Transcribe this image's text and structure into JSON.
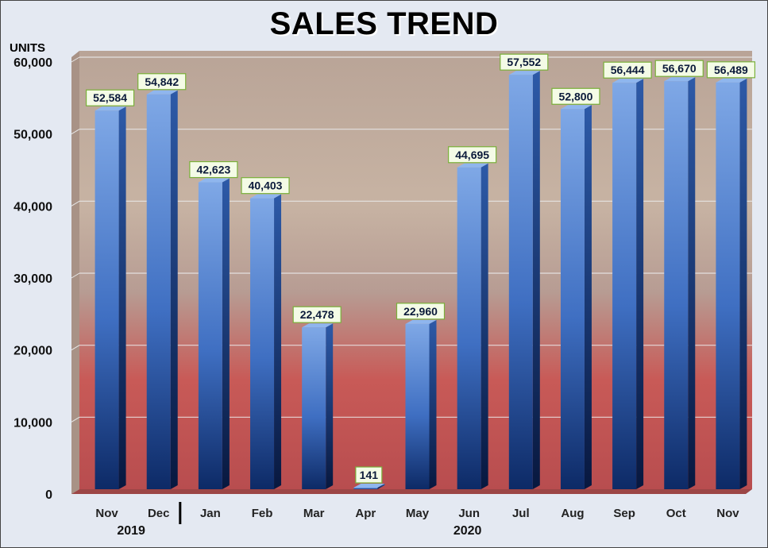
{
  "chart_data": {
    "type": "bar",
    "title": "SALES TREND",
    "ylabel": "UNITS",
    "ylim": [
      0,
      60000
    ],
    "yticks": [
      "0",
      "10,000",
      "20,000",
      "30,000",
      "40,000",
      "50,000",
      "60,000"
    ],
    "categories": [
      "Nov",
      "Dec",
      "Jan",
      "Feb",
      "Mar",
      "Apr",
      "May",
      "Jun",
      "Jul",
      "Aug",
      "Sep",
      "Oct",
      "Nov"
    ],
    "values": [
      52584,
      54842,
      42623,
      40403,
      22478,
      141,
      22960,
      44695,
      57552,
      52800,
      56444,
      56670,
      56489
    ],
    "data_labels": [
      "52,584",
      "54,842",
      "42,623",
      "40,403",
      "22,478",
      "141",
      "22,960",
      "44,695",
      "57,552",
      "52,800",
      "56,444",
      "56,670",
      "56,489"
    ],
    "year_groups": [
      {
        "label": "2019",
        "categories": [
          "Nov",
          "Dec"
        ]
      },
      {
        "label": "2020",
        "categories": [
          "Jan",
          "Feb",
          "Mar",
          "Apr",
          "May",
          "Jun",
          "Jul",
          "Aug",
          "Sep",
          "Oct",
          "Nov"
        ]
      }
    ],
    "grid": true,
    "legend": "none",
    "colors": {
      "bar_top": "#7fa8e6",
      "bar_mid": "#3f6fc2",
      "bar_bottom": "#0d2a66",
      "label_bg": "#f4fbe6",
      "label_border": "#7ab03a"
    }
  }
}
